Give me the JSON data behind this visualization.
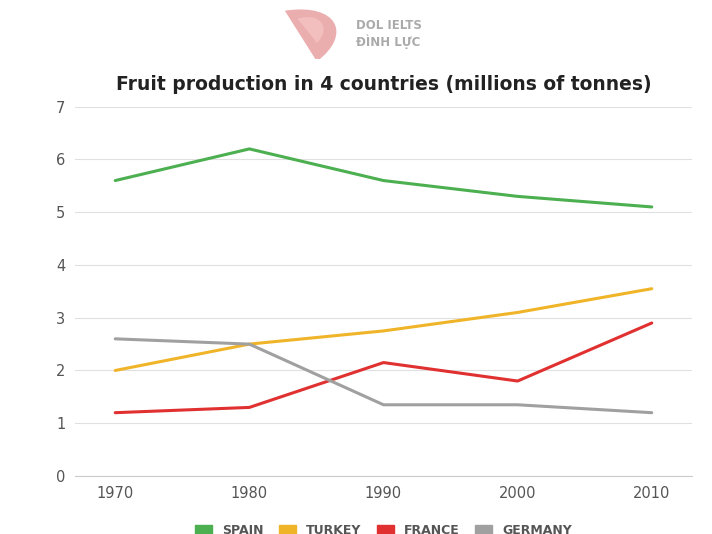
{
  "title": "Fruit production in 4 countries (millions of tonnes)",
  "years": [
    1970,
    1980,
    1990,
    2000,
    2010
  ],
  "series": {
    "SPAIN": [
      5.6,
      6.2,
      5.6,
      5.3,
      5.1
    ],
    "TURKEY": [
      2.0,
      2.5,
      2.75,
      3.1,
      3.55
    ],
    "FRANCE": [
      1.2,
      1.3,
      2.15,
      1.8,
      2.9
    ],
    "GERMANY": [
      2.6,
      2.5,
      1.35,
      1.35,
      1.2
    ]
  },
  "colors": {
    "SPAIN": "#4caf50",
    "TURKEY": "#f0b429",
    "FRANCE": "#e03030",
    "GERMANY": "#a0a0a0"
  },
  "ylim": [
    0,
    7
  ],
  "yticks": [
    0,
    1,
    2,
    3,
    4,
    5,
    6,
    7
  ],
  "background_color": "#ffffff",
  "grid_color": "#e0e0e0",
  "line_width": 2.2,
  "title_fontsize": 13.5,
  "tick_fontsize": 10.5,
  "legend_fontsize": 9,
  "logo_text1": "DOL IELTS",
  "logo_text2": "ĐÌNH LỰC",
  "logo_color": "#bbbbbb"
}
